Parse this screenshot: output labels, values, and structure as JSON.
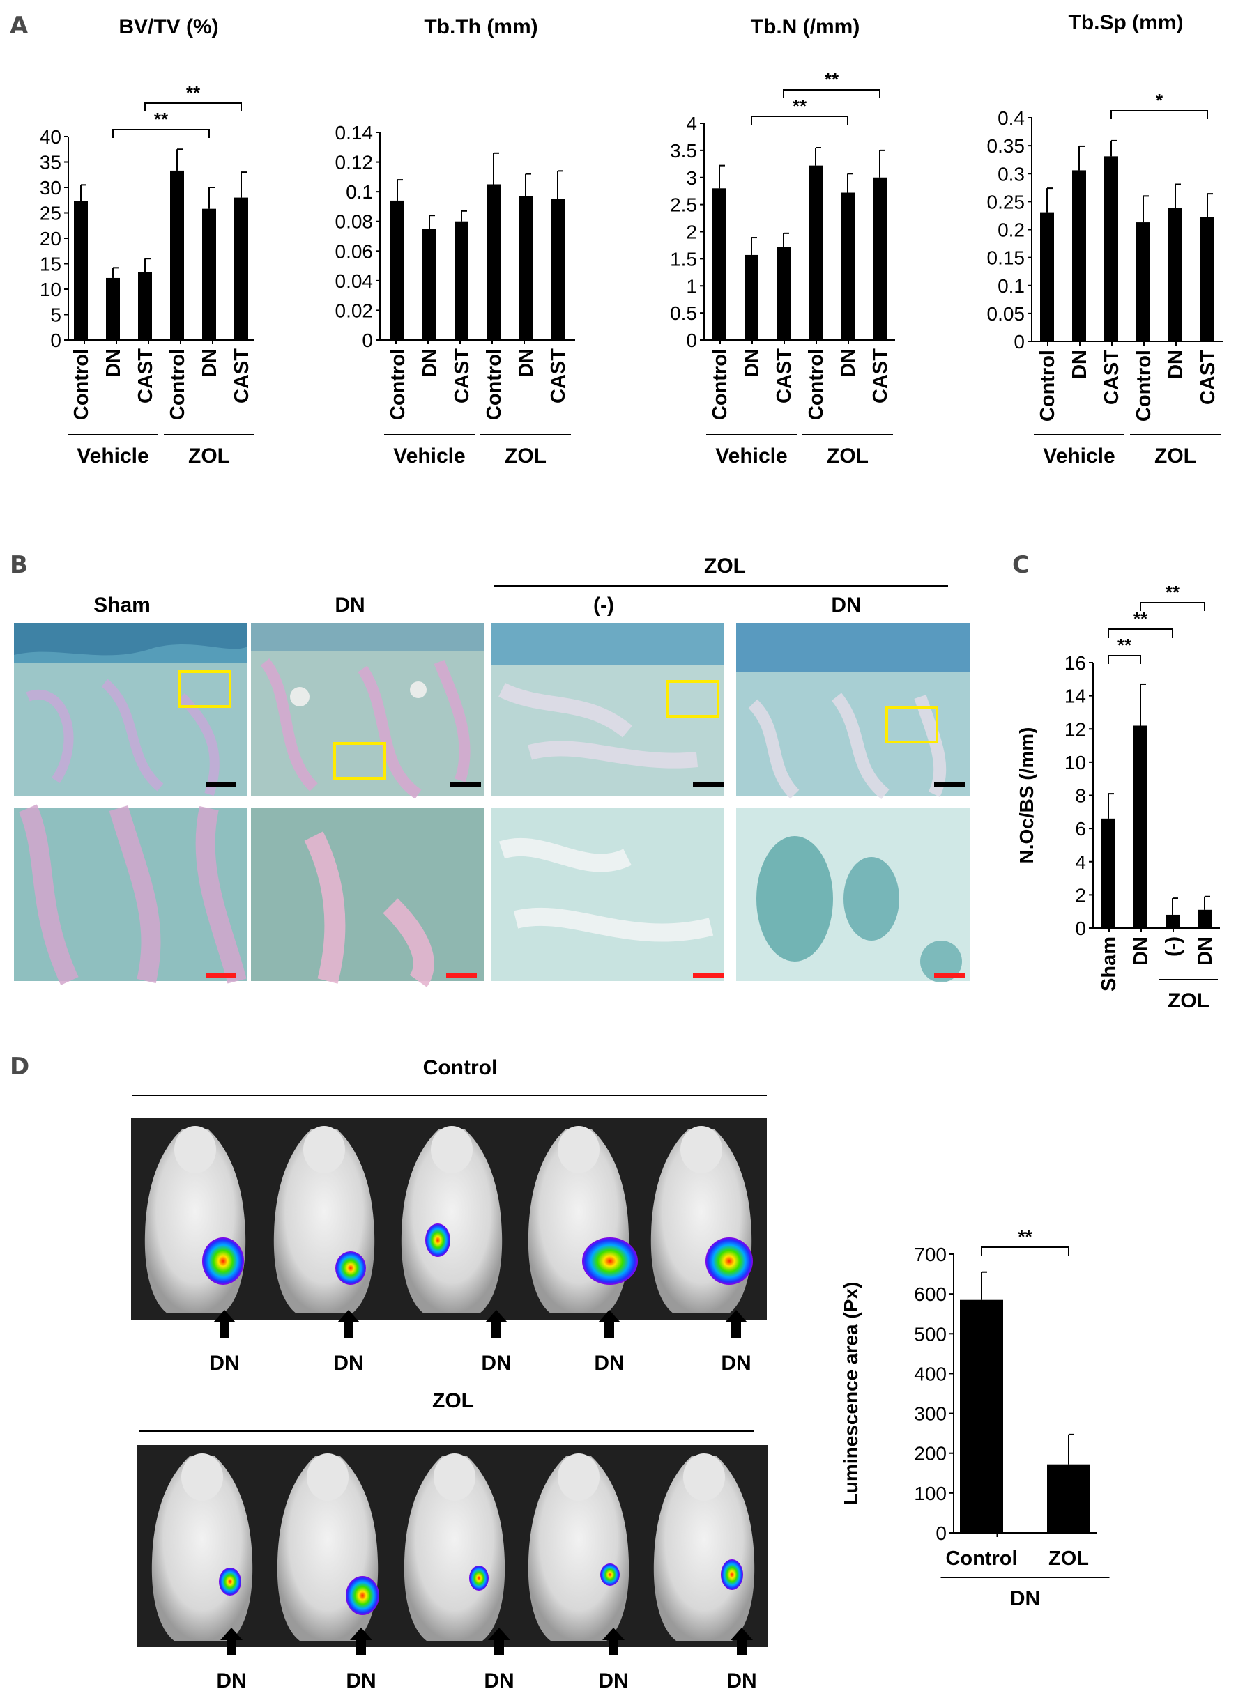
{
  "panels": {
    "A": "A",
    "B": "B",
    "C": "C",
    "D": "D"
  },
  "panel_b": {
    "zol_label": "ZOL",
    "columns": [
      "Sham",
      "DN",
      "(-)",
      "DN"
    ]
  },
  "panel_d": {
    "control_label": "Control",
    "zol_label": "ZOL",
    "arrow_labels_top": [
      "DN",
      "DN",
      "DN",
      "DN",
      "DN"
    ],
    "arrow_labels_bottom": [
      "DN",
      "DN",
      "DN",
      "DN",
      "DN"
    ]
  },
  "chart_data": [
    {
      "id": "bvtv",
      "type": "bar",
      "title": "BV/TV (%)",
      "ylabel": "",
      "categories": [
        "Control",
        "DN",
        "CAST",
        "Control",
        "DN",
        "CAST"
      ],
      "groups": [
        {
          "label": "Vehicle",
          "from": 0,
          "to": 2
        },
        {
          "label": "ZOL",
          "from": 3,
          "to": 5
        }
      ],
      "values": [
        27.3,
        12.2,
        13.4,
        33.3,
        25.8,
        28.0
      ],
      "errors": [
        3.2,
        2.0,
        2.6,
        4.2,
        4.2,
        5.0
      ],
      "ylim": [
        0,
        40
      ],
      "yticks": [
        0,
        5,
        10,
        15,
        20,
        25,
        30,
        35,
        40
      ],
      "significance": [
        {
          "from": 1,
          "to": 4,
          "label": "**"
        },
        {
          "from": 2,
          "to": 5,
          "label": "**"
        }
      ]
    },
    {
      "id": "tbth",
      "type": "bar",
      "title": "Tb.Th (mm)",
      "ylabel": "",
      "categories": [
        "Control",
        "DN",
        "CAST",
        "Control",
        "DN",
        "CAST"
      ],
      "groups": [
        {
          "label": "Vehicle",
          "from": 0,
          "to": 2
        },
        {
          "label": "ZOL",
          "from": 3,
          "to": 5
        }
      ],
      "values": [
        0.094,
        0.075,
        0.08,
        0.105,
        0.097,
        0.095
      ],
      "errors": [
        0.014,
        0.009,
        0.007,
        0.021,
        0.015,
        0.019
      ],
      "ylim": [
        0,
        0.14
      ],
      "yticks": [
        0,
        0.02,
        0.04,
        0.06,
        0.08,
        0.1,
        0.12,
        0.14
      ],
      "significance": []
    },
    {
      "id": "tbn",
      "type": "bar",
      "title": "Tb.N  (/mm)",
      "ylabel": "",
      "categories": [
        "Control",
        "DN",
        "CAST",
        "Control",
        "DN",
        "CAST"
      ],
      "groups": [
        {
          "label": "Vehicle",
          "from": 0,
          "to": 2
        },
        {
          "label": "ZOL",
          "from": 3,
          "to": 5
        }
      ],
      "values": [
        2.8,
        1.57,
        1.72,
        3.22,
        2.72,
        3.0
      ],
      "errors": [
        0.42,
        0.32,
        0.25,
        0.33,
        0.35,
        0.5
      ],
      "ylim": [
        0,
        4
      ],
      "yticks": [
        0,
        0.5,
        1,
        1.5,
        2,
        2.5,
        3,
        3.5,
        4
      ],
      "significance": [
        {
          "from": 1,
          "to": 4,
          "label": "**"
        },
        {
          "from": 2,
          "to": 5,
          "label": "**"
        }
      ]
    },
    {
      "id": "tbsp",
      "type": "bar",
      "title": "Tb.Sp (mm)",
      "ylabel": "",
      "categories": [
        "Control",
        "DN",
        "CAST",
        "Control",
        "DN",
        "CAST"
      ],
      "groups": [
        {
          "label": "Vehicle",
          "from": 0,
          "to": 2
        },
        {
          "label": "ZOL",
          "from": 3,
          "to": 5
        }
      ],
      "values": [
        0.231,
        0.306,
        0.331,
        0.213,
        0.238,
        0.222
      ],
      "errors": [
        0.043,
        0.043,
        0.028,
        0.047,
        0.043,
        0.042
      ],
      "ylim": [
        0,
        0.4
      ],
      "yticks": [
        0,
        0.05,
        0.1,
        0.15,
        0.2,
        0.25,
        0.3,
        0.35,
        0.4
      ],
      "significance": [
        {
          "from": 2,
          "to": 5,
          "label": "*"
        }
      ]
    },
    {
      "id": "noc",
      "type": "bar",
      "title": "",
      "ylabel": "N.Oc/BS (/mm)",
      "categories": [
        "Sham",
        "DN",
        "(-)",
        "DN"
      ],
      "groups": [
        {
          "label": "ZOL",
          "from": 2,
          "to": 3
        }
      ],
      "values": [
        6.6,
        12.2,
        0.8,
        1.1
      ],
      "errors": [
        1.5,
        2.5,
        1.0,
        0.8
      ],
      "ylim": [
        0,
        16
      ],
      "yticks": [
        0,
        2,
        4,
        6,
        8,
        10,
        12,
        14,
        16
      ],
      "significance": [
        {
          "from": 0,
          "to": 1,
          "label": "**"
        },
        {
          "from": 0,
          "to": 2,
          "label": "**"
        },
        {
          "from": 1,
          "to": 3,
          "label": "**"
        }
      ]
    },
    {
      "id": "lum",
      "type": "bar",
      "title": "",
      "ylabel": "Luminescence area (Px)",
      "categories": [
        "Control",
        "ZOL"
      ],
      "groups": [
        {
          "label": "DN",
          "from": 0,
          "to": 1
        }
      ],
      "values": [
        585,
        172
      ],
      "errors": [
        70,
        75
      ],
      "ylim": [
        0,
        700
      ],
      "yticks": [
        0,
        100,
        200,
        300,
        400,
        500,
        600,
        700
      ],
      "significance": [
        {
          "from": 0,
          "to": 1,
          "label": "**"
        }
      ]
    }
  ]
}
